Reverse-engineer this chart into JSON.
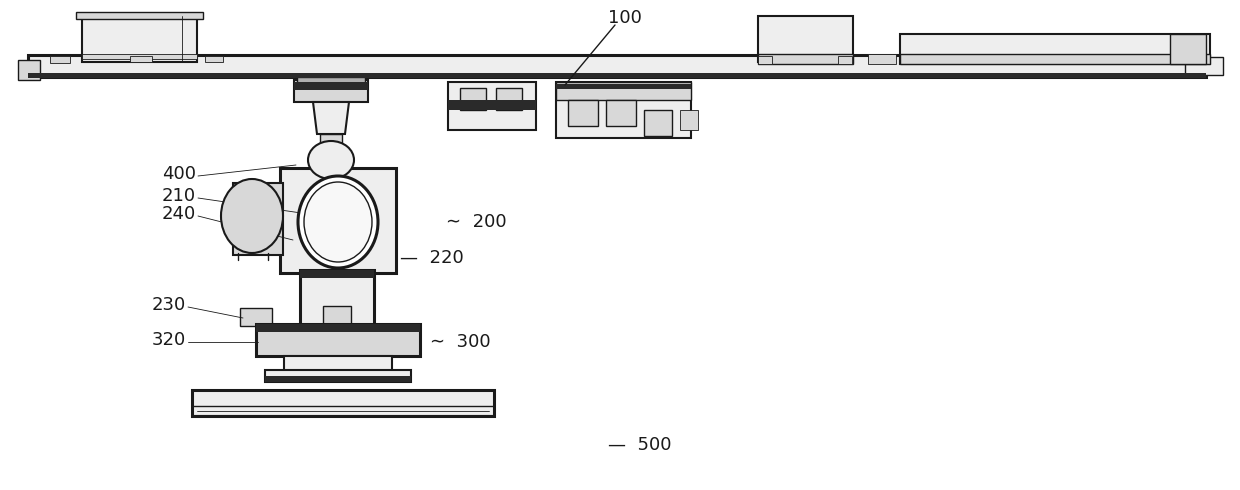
{
  "bg_color": "#ffffff",
  "line_color": "#1a1a1a",
  "dark_color": "#2a2a2a",
  "light_gray": "#eeeeee",
  "mid_gray": "#d8d8d8",
  "dark_gray": "#b0b0b0",
  "figsize": [
    12.4,
    4.9
  ],
  "dpi": 100,
  "label_fontsize": 13
}
